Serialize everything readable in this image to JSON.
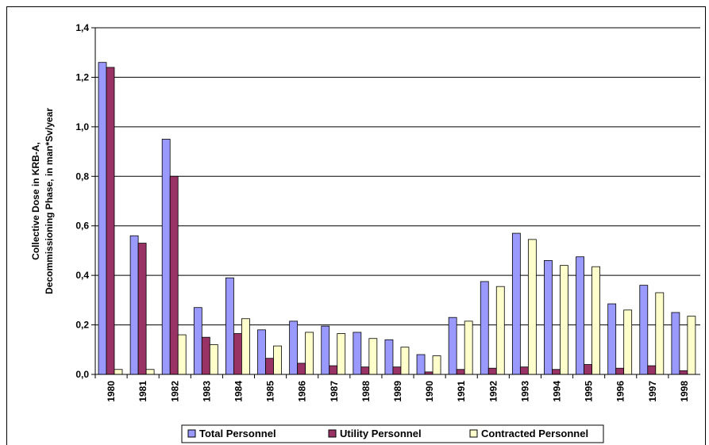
{
  "chart_data": {
    "type": "bar",
    "ylabel": [
      "Collective Dose in KRB-A,",
      "Decommissioning Phase, in man*Sv/year"
    ],
    "categories": [
      "1980",
      "1981",
      "1982",
      "1983",
      "1984",
      "1985",
      "1986",
      "1987",
      "1988",
      "1989",
      "1990",
      "1991",
      "1992",
      "1993",
      "1994",
      "1995",
      "1996",
      "1997",
      "1998"
    ],
    "series": [
      {
        "name": "Total Personnel",
        "color": "#9999ff",
        "values": [
          1.26,
          0.56,
          0.95,
          0.27,
          0.39,
          0.18,
          0.215,
          0.195,
          0.17,
          0.14,
          0.08,
          0.23,
          0.375,
          0.57,
          0.46,
          0.475,
          0.285,
          0.36,
          0.25
        ]
      },
      {
        "name": "Utility Personnel",
        "color": "#993366",
        "values": [
          1.24,
          0.53,
          0.8,
          0.15,
          0.165,
          0.065,
          0.045,
          0.035,
          0.03,
          0.03,
          0.01,
          0.02,
          0.025,
          0.03,
          0.02,
          0.04,
          0.025,
          0.035,
          0.015
        ]
      },
      {
        "name": "Contracted Personnel",
        "color": "#ffffcc",
        "values": [
          0.02,
          0.02,
          0.16,
          0.12,
          0.225,
          0.115,
          0.17,
          0.165,
          0.145,
          0.11,
          0.075,
          0.215,
          0.355,
          0.545,
          0.44,
          0.435,
          0.26,
          0.33,
          0.235
        ]
      }
    ],
    "ylim": [
      0,
      1.4
    ],
    "yticks": [
      {
        "value": 0,
        "label": "0,0"
      },
      {
        "value": 0.2,
        "label": "0,2"
      },
      {
        "value": 0.4,
        "label": "0,4"
      },
      {
        "value": 0.6,
        "label": "0,6"
      },
      {
        "value": 0.8,
        "label": "0,8"
      },
      {
        "value": 1.0,
        "label": "1,0"
      },
      {
        "value": 1.2,
        "label": "1,2"
      },
      {
        "value": 1.4,
        "label": "1,4"
      }
    ],
    "grid": true,
    "legend": "bottom"
  }
}
